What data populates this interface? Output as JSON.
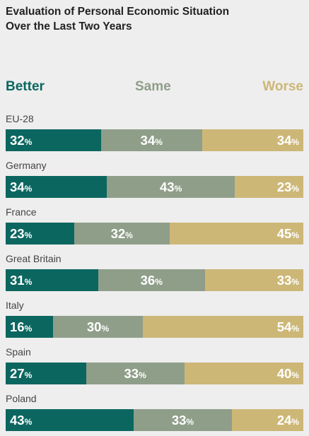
{
  "header": {
    "title_line1": "Evaluation of Personal Economic Situation",
    "title_line2": "Over the Last Two Years"
  },
  "colors": {
    "better": "#0c6660",
    "same": "#8f9e89",
    "worse": "#cdb777"
  },
  "chart_data": {
    "type": "bar",
    "orientation": "horizontal",
    "stacked": true,
    "title": "Evaluation of Personal Economic Situation Over the Last Two Years",
    "unit": "%",
    "legend_position": "top",
    "categories": [
      "EU-28",
      "Germany",
      "France",
      "Great Britain",
      "Italy",
      "Spain",
      "Poland"
    ],
    "series": [
      {
        "name": "Better",
        "values": [
          32,
          34,
          23,
          31,
          16,
          27,
          43
        ]
      },
      {
        "name": "Same",
        "values": [
          34,
          43,
          32,
          36,
          30,
          33,
          33
        ]
      },
      {
        "name": "Worse",
        "values": [
          34,
          23,
          45,
          33,
          54,
          40,
          24
        ]
      }
    ]
  }
}
